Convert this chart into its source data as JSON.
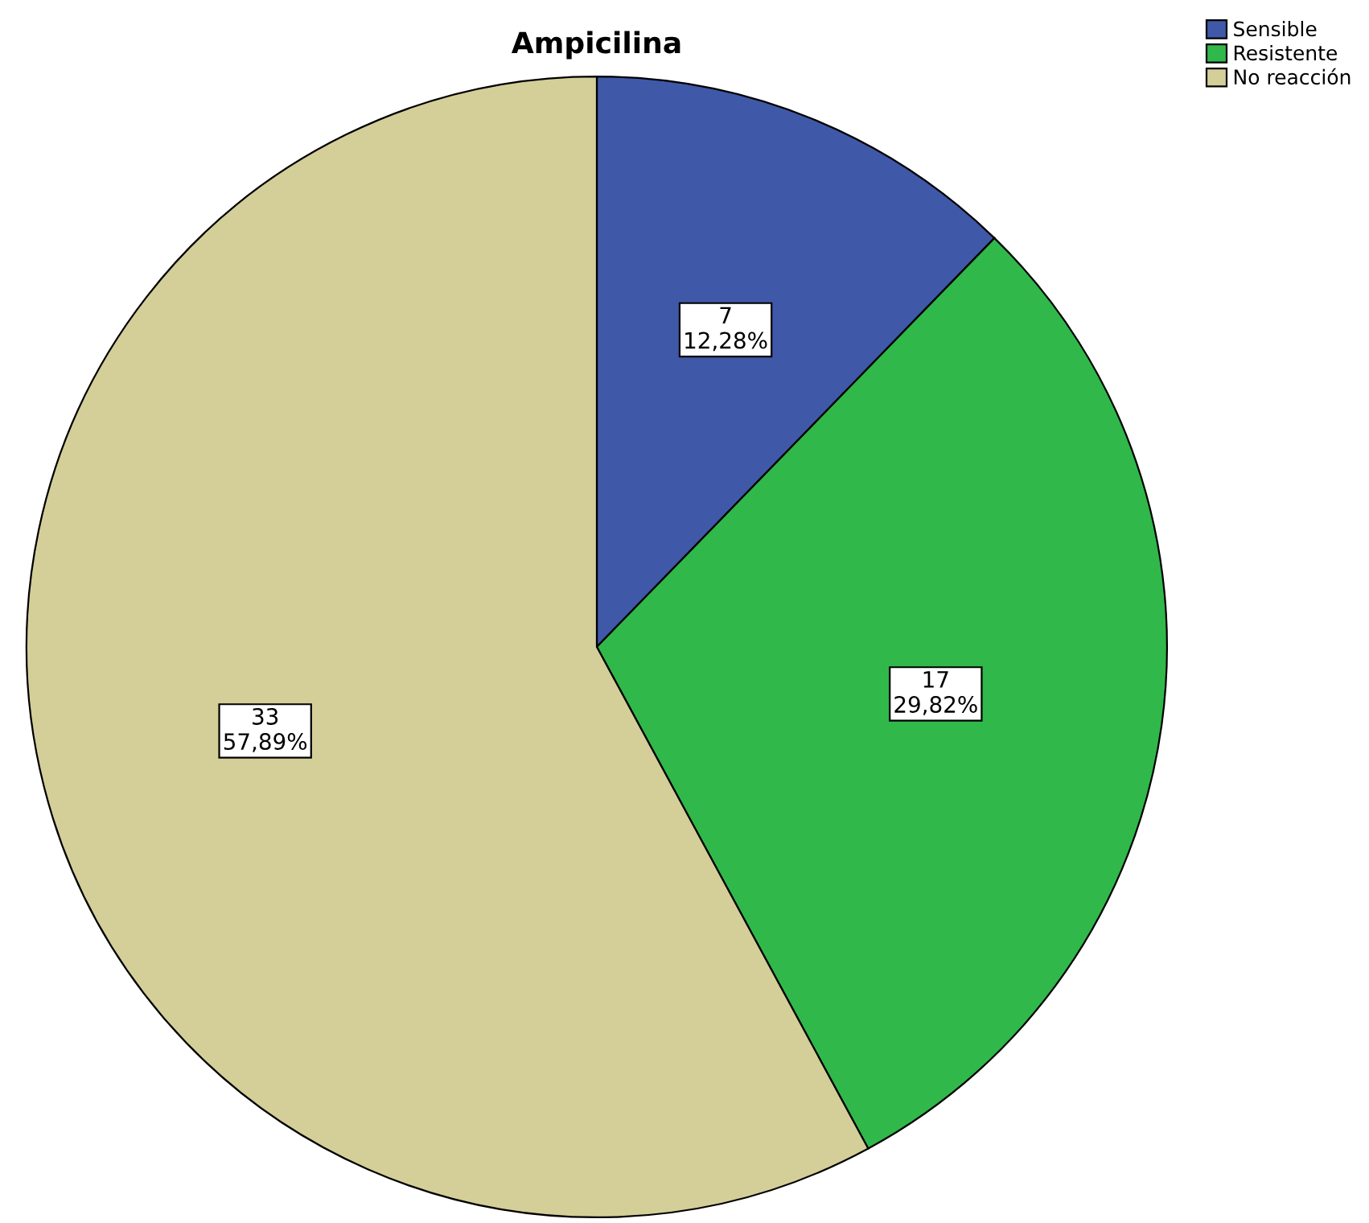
{
  "chart_data": {
    "type": "pie",
    "title": "Ampicilina",
    "categories": [
      "Sensible",
      "Resistente",
      "No reacción"
    ],
    "values": [
      7,
      17,
      33
    ],
    "colors": [
      "#3f58a8",
      "#30b84a",
      "#d4ce98"
    ],
    "value_labels": [
      "7\n12,28%",
      "17\n29,82%",
      "33\n57,89%"
    ],
    "legend": "top right"
  }
}
